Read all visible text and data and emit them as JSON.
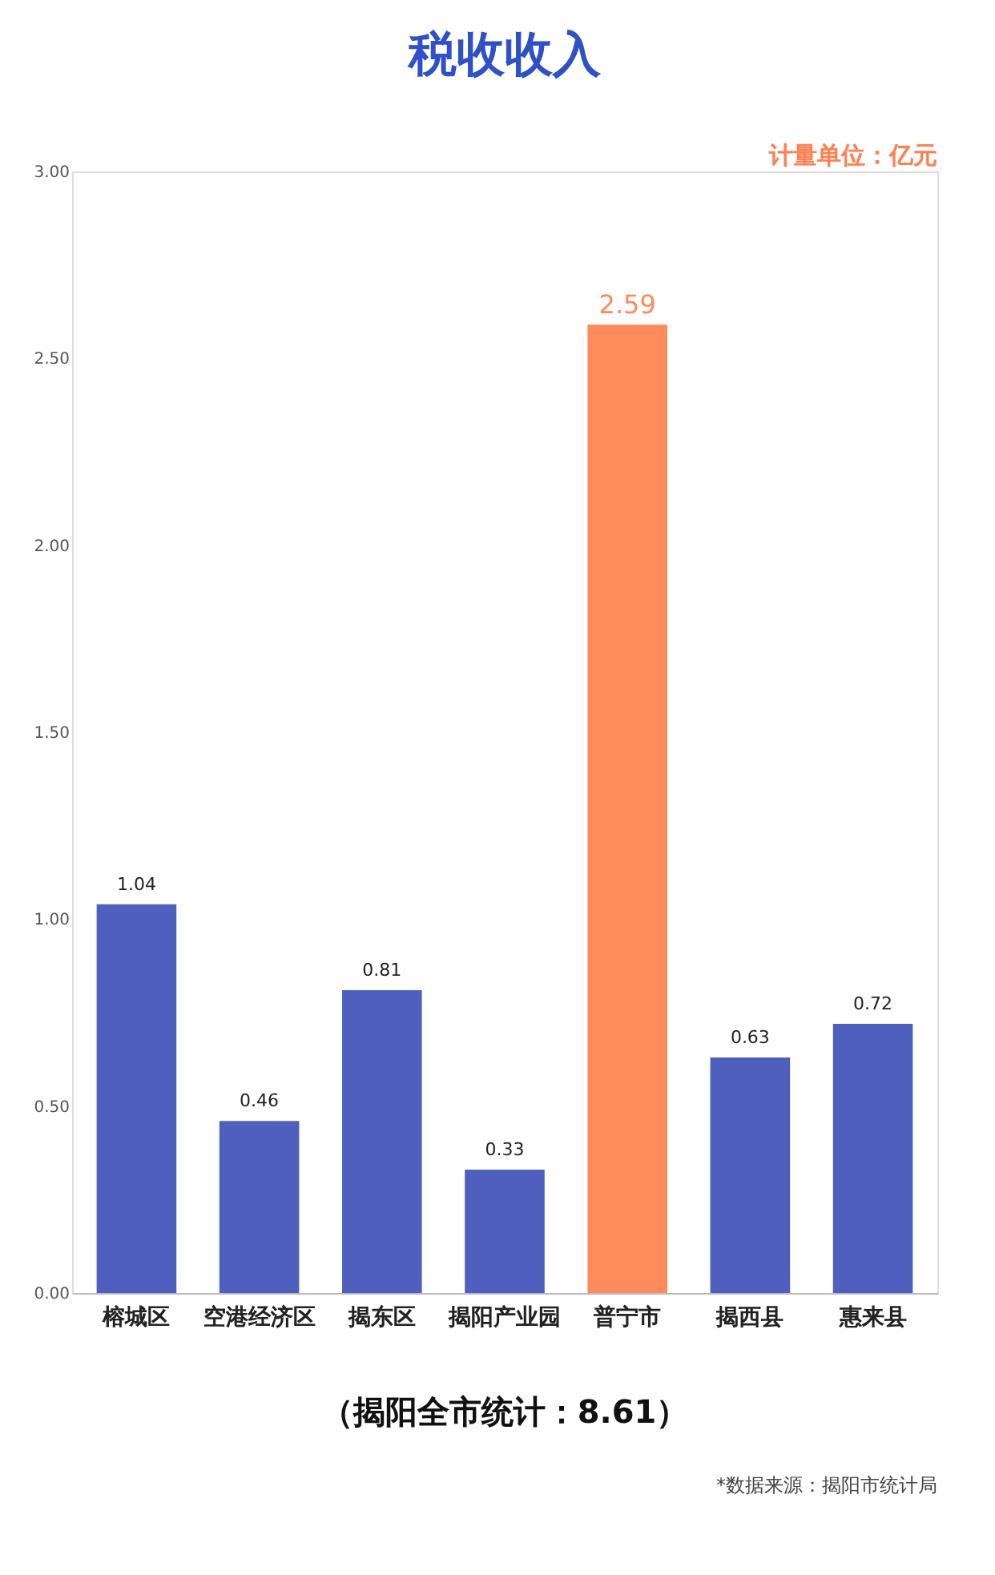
{
  "chart_data": {
    "type": "bar",
    "title": "税收收入",
    "categories": [
      "榕城区",
      "空港经济区",
      "揭东区",
      "揭阳产业园",
      "普宁市",
      "揭西县",
      "惠来县"
    ],
    "values": [
      1.04,
      0.46,
      0.81,
      0.33,
      2.59,
      0.63,
      0.72
    ],
    "colors": [
      "#4f5fbd",
      "#4f5fbd",
      "#4f5fbd",
      "#4f5fbd",
      "#ff8a5b",
      "#4f5fbd",
      "#4f5fbd"
    ],
    "ylim": [
      0,
      3
    ],
    "yticks": [
      {
        "value": 0,
        "label": "0.00"
      },
      {
        "value": 0.5,
        "label": "0.50"
      },
      {
        "value": 1,
        "label": "1.00"
      },
      {
        "value": 1.5,
        "label": "1.50"
      },
      {
        "value": 2,
        "label": "2.00"
      },
      {
        "value": 2.5,
        "label": "2.50"
      },
      {
        "value": 3,
        "label": "3.00"
      }
    ],
    "data_labels": true,
    "grid": false,
    "annotations": [
      "计量单位：亿元",
      "（揭阳全市统计：8.61）",
      "*数据来源：揭阳市统计局"
    ]
  }
}
